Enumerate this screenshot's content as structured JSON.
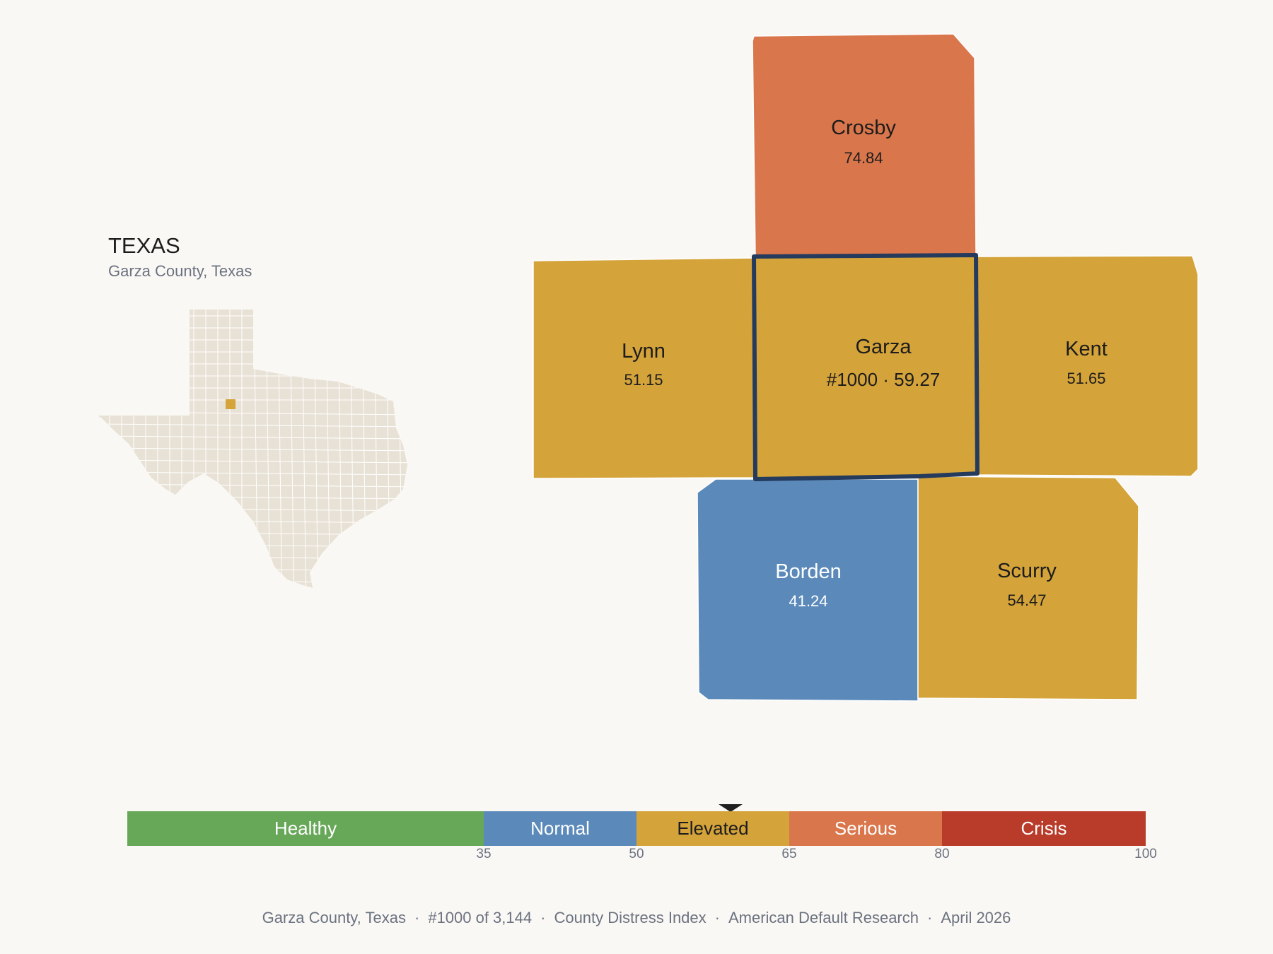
{
  "header": {
    "title": "TEXAS",
    "subtitle": "Garza County, Texas"
  },
  "inset": {
    "state": "Texas",
    "highlight_county": "Garza",
    "highlight_color": "#d4a33a",
    "base_color": "#e8e2d6"
  },
  "colors": {
    "healthy": "#67a758",
    "normal": "#5b8aba",
    "elevated": "#d4a33a",
    "serious": "#da764b",
    "crisis": "#b93b2a",
    "focus_outline": "#243b5e"
  },
  "counties": [
    {
      "id": "crosby",
      "name": "Crosby",
      "score": "74.84",
      "category": "serious"
    },
    {
      "id": "lynn",
      "name": "Lynn",
      "score": "51.15",
      "category": "elevated"
    },
    {
      "id": "garza",
      "name": "Garza",
      "score": "#1000 · 59.27",
      "category": "elevated",
      "focus": true
    },
    {
      "id": "kent",
      "name": "Kent",
      "score": "51.65",
      "category": "elevated"
    },
    {
      "id": "borden",
      "name": "Borden",
      "score": "41.24",
      "category": "normal"
    },
    {
      "id": "scurry",
      "name": "Scurry",
      "score": "54.47",
      "category": "elevated"
    }
  ],
  "scale": {
    "segments": [
      {
        "label": "Healthy",
        "from": 0,
        "to": 35,
        "color": "#67a758",
        "text_color": "#ffffff"
      },
      {
        "label": "Normal",
        "from": 35,
        "to": 50,
        "color": "#5b8aba",
        "text_color": "#ffffff"
      },
      {
        "label": "Elevated",
        "from": 50,
        "to": 65,
        "color": "#d4a33a",
        "text_color": "#1c1c1c"
      },
      {
        "label": "Serious",
        "from": 65,
        "to": 80,
        "color": "#da764b",
        "text_color": "#ffffff"
      },
      {
        "label": "Crisis",
        "from": 80,
        "to": 100,
        "color": "#b93b2a",
        "text_color": "#ffffff"
      }
    ],
    "ticks": [
      "35",
      "50",
      "65",
      "80",
      "100"
    ],
    "marker_value": 59.27
  },
  "footer": {
    "parts": [
      "Garza County, Texas",
      "#1000 of 3,144",
      "County Distress Index",
      "American Default Research",
      "April 2026"
    ],
    "separator": "·"
  }
}
